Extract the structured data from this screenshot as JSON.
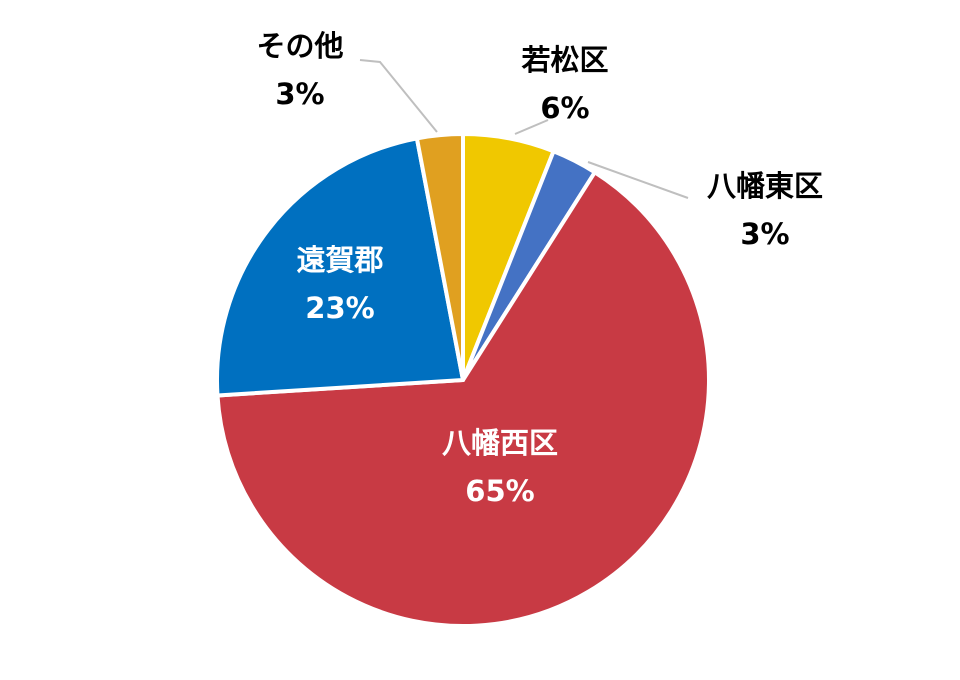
{
  "chart_data": {
    "type": "pie",
    "categories": [
      "若松区",
      "八幡東区",
      "八幡西区",
      "遠賀郡",
      "その他"
    ],
    "values": [
      6,
      3,
      65,
      23,
      3
    ],
    "value_labels": [
      "6%",
      "3%",
      "65%",
      "23%",
      "3%"
    ],
    "colors": [
      "#f0c800",
      "#4472c4",
      "#c83a44",
      "#0070c0",
      "#e0a020"
    ]
  }
}
